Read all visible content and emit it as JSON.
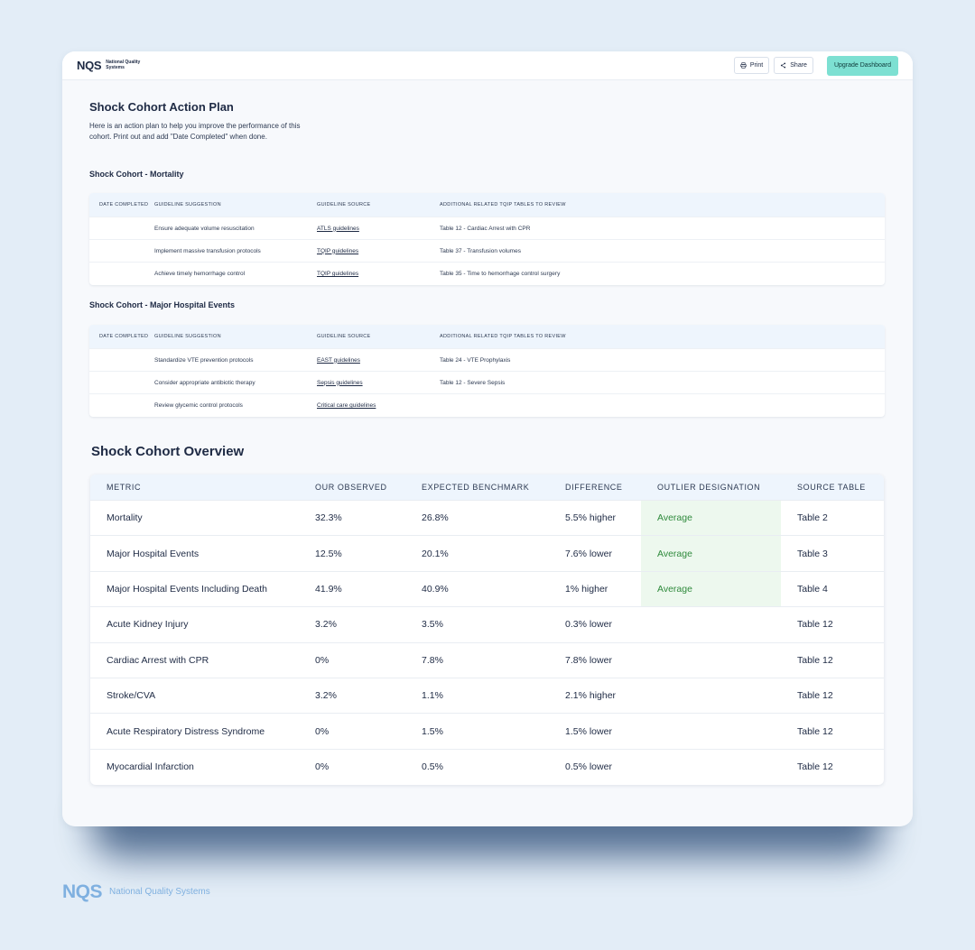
{
  "header": {
    "logo_mark": "NQS",
    "logo_text": "National Quality Systems",
    "print_label": "Print",
    "share_label": "Share",
    "upgrade_label": "Upgrade Dashboard"
  },
  "plan": {
    "title": "Shock Cohort Action Plan",
    "intro": "Here is an action plan to help you improve the performance of this cohort. Print out and add \"Date Completed\" when done.",
    "columns": [
      "DATE COMPLETED",
      "GUIDELINE SUGGESTION",
      "GUIDELINE SOURCE",
      "ADDITIONAL RELATED TQIP TABLES TO REVIEW"
    ],
    "sections": [
      {
        "title": "Shock Cohort - Mortality",
        "rows": [
          {
            "date": "",
            "suggestion": "Ensure adequate volume resuscitation",
            "source": "ATLS guidelines",
            "tables": "Table 12 - Cardiac Arrest with CPR"
          },
          {
            "date": "",
            "suggestion": "Implement massive transfusion protocols",
            "source": "TQIP guidelines",
            "tables": "Table 37 - Transfusion volumes"
          },
          {
            "date": "",
            "suggestion": "Achieve timely hemorrhage control",
            "source": "TQIP guidelines",
            "tables": "Table 35 - Time to hemorrhage control surgery"
          }
        ]
      },
      {
        "title": "Shock Cohort - Major Hospital Events",
        "rows": [
          {
            "date": "",
            "suggestion": "Standardize VTE prevention protocols",
            "source": "EAST guidelines",
            "tables": "Table 24 - VTE Prophylaxis"
          },
          {
            "date": "",
            "suggestion": "Consider appropriate antibiotic therapy",
            "source": "Sepsis guidelines",
            "tables": "Table 12 - Severe Sepsis"
          },
          {
            "date": "",
            "suggestion": "Review glycemic control protocols",
            "source": "Critical care guidelines",
            "tables": ""
          }
        ]
      }
    ]
  },
  "overview": {
    "title": "Shock Cohort Overview",
    "columns": [
      "METRIC",
      "OUR OBSERVED",
      "EXPECTED BENCHMARK",
      "DIFFERENCE",
      "OUTLIER DESIGNATION",
      "SOURCE TABLE"
    ],
    "rows": [
      {
        "metric": "Mortality",
        "observed": "32.3%",
        "expected": "26.8%",
        "difference": "5.5% higher",
        "designation": "Average",
        "source": "Table 2"
      },
      {
        "metric": "Major Hospital Events",
        "observed": "12.5%",
        "expected": "20.1%",
        "difference": "7.6% lower",
        "designation": "Average",
        "source": "Table 3"
      },
      {
        "metric": "Major Hospital Events Including Death",
        "observed": "41.9%",
        "expected": "40.9%",
        "difference": "1% higher",
        "designation": "Average",
        "source": "Table 4"
      },
      {
        "metric": "Acute Kidney Injury",
        "observed": "3.2%",
        "expected": "3.5%",
        "difference": "0.3% lower",
        "designation": "",
        "source": "Table 12"
      },
      {
        "metric": "Cardiac Arrest with CPR",
        "observed": "0%",
        "expected": "7.8%",
        "difference": "7.8% lower",
        "designation": "",
        "source": "Table 12"
      },
      {
        "metric": "Stroke/CVA",
        "observed": "3.2%",
        "expected": "1.1%",
        "difference": "2.1% higher",
        "designation": "",
        "source": "Table 12"
      },
      {
        "metric": "Acute Respiratory Distress Syndrome",
        "observed": "0%",
        "expected": "1.5%",
        "difference": "1.5% lower",
        "designation": "",
        "source": "Table 12"
      },
      {
        "metric": "Myocardial Infarction",
        "observed": "0%",
        "expected": "0.5%",
        "difference": "0.5% lower",
        "designation": "",
        "source": "Table 12"
      }
    ]
  },
  "footer": {
    "logo_mark": "NQS",
    "logo_text": "National Quality Systems"
  },
  "colors": {
    "accent": "#7de0d2",
    "average_bg": "#edf8ee",
    "average_text": "#2f8a3c",
    "background": "#e3edf7"
  }
}
